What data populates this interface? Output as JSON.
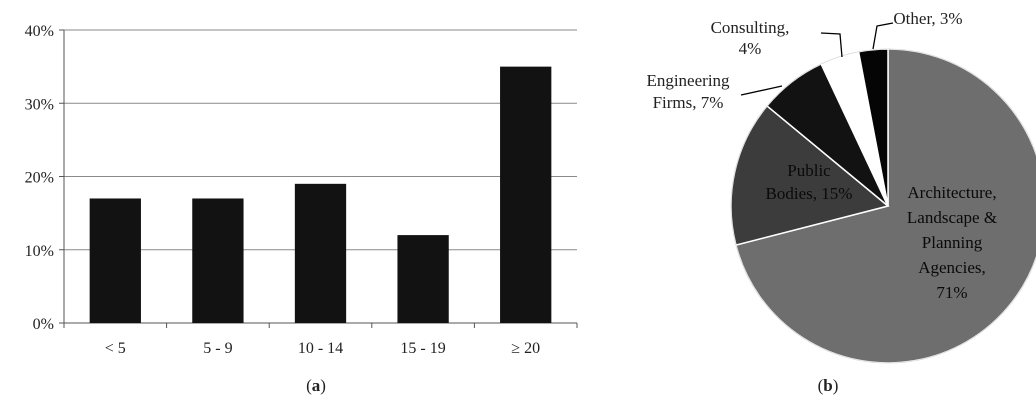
{
  "chart_data": [
    {
      "type": "bar",
      "panel_label": "a",
      "categories": [
        "< 5",
        "5 - 9",
        "10 - 14",
        "15 - 19",
        "≥ 20"
      ],
      "values": [
        17,
        17,
        19,
        12,
        35
      ],
      "ylim": [
        0,
        40
      ],
      "yticks": [
        0,
        10,
        20,
        30,
        40
      ],
      "ytick_labels": [
        "0%",
        "10%",
        "20%",
        "30%",
        "40%"
      ],
      "grid": true,
      "colors": {
        "bar": "#121212",
        "grid": "#8a8a8a",
        "axis": "#555555"
      }
    },
    {
      "type": "pie",
      "panel_label": "b",
      "slices": [
        {
          "label_lines": [
            "Architecture,",
            "Landscape &",
            "Planning",
            "Agencies,",
            "71%"
          ],
          "value": 71,
          "color": "#6e6e6e"
        },
        {
          "label_lines": [
            "Public",
            "Bodies, 15%"
          ],
          "value": 15,
          "color": "#3c3c3c"
        },
        {
          "label_lines": [
            "Engineering",
            "Firms, 7%"
          ],
          "value": 7,
          "color": "#121212"
        },
        {
          "label_lines": [
            "Consulting,",
            "4%"
          ],
          "value": 4,
          "color": "#ffffff"
        },
        {
          "label_lines": [
            "Other, 3%"
          ],
          "value": 3,
          "color": "#050505"
        }
      ]
    }
  ]
}
